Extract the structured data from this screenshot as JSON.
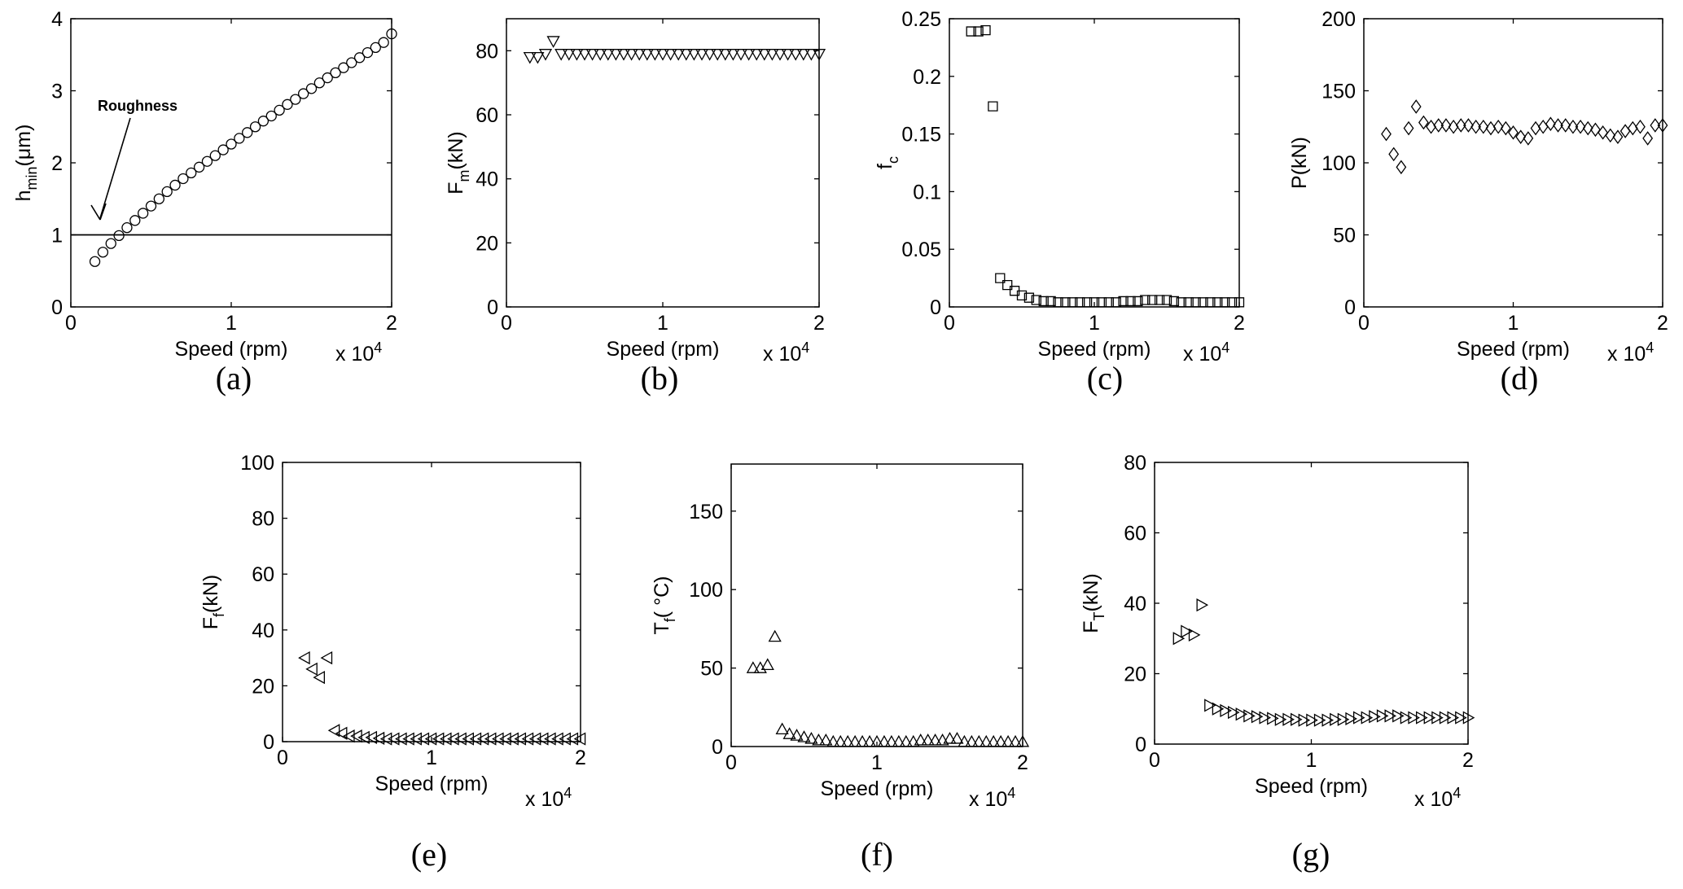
{
  "panels": [
    {
      "id": "a",
      "caption": "(a)",
      "ylabel": {
        "main": "h",
        "sub": "min",
        "rest": "(μm)"
      },
      "xlabel": "Speed (rpm)",
      "multiplier": {
        "base": "x 10",
        "exp": "4"
      },
      "annotation": "Roughness"
    },
    {
      "id": "b",
      "caption": "(b)",
      "ylabel": {
        "main": "F",
        "sub": "m",
        "rest": "(kN)"
      },
      "xlabel": "Speed (rpm)",
      "multiplier": {
        "base": "x 10",
        "exp": "4"
      }
    },
    {
      "id": "c",
      "caption": "(c)",
      "ylabel": {
        "main": "f",
        "sub": "c",
        "rest": ""
      },
      "xlabel": "Speed (rpm)",
      "multiplier": {
        "base": "x 10",
        "exp": "4"
      }
    },
    {
      "id": "d",
      "caption": "(d)",
      "ylabel": {
        "main": "P(kN)",
        "sub": "",
        "rest": ""
      },
      "xlabel": "Speed (rpm)",
      "multiplier": {
        "base": "x 10",
        "exp": "4"
      }
    },
    {
      "id": "e",
      "caption": "(e)",
      "ylabel": {
        "main": "F",
        "sub": "f",
        "rest": "(kN)"
      },
      "xlabel": "Speed (rpm)",
      "multiplier": {
        "base": "x 10",
        "exp": "4"
      }
    },
    {
      "id": "f",
      "caption": "(f)",
      "ylabel": {
        "main": "T",
        "sub": "f",
        "rest": "( °C)",
        "sup": "o"
      },
      "xlabel": "Speed (rpm)",
      "multiplier": {
        "base": "x 10",
        "exp": "4"
      }
    },
    {
      "id": "g",
      "caption": "(g)",
      "ylabel": {
        "main": "F",
        "sub": "T",
        "rest": "(kN)"
      },
      "xlabel": "Speed (rpm)",
      "multiplier": {
        "base": "x 10",
        "exp": "4"
      }
    }
  ],
  "chart_data": [
    {
      "panel": "a",
      "type": "scatter",
      "marker": "circle",
      "xlabel": "Speed (rpm)",
      "ylabel": "h_min(μm)",
      "xlim": [
        0,
        20000
      ],
      "ylim": [
        0,
        4
      ],
      "xticks": [
        0,
        10000,
        20000
      ],
      "xtick_labels": [
        "0",
        "1",
        "2"
      ],
      "yticks": [
        0,
        1,
        2,
        3,
        4
      ],
      "ytick_labels": [
        "0",
        "1",
        "2",
        "3",
        "4"
      ],
      "reference_line": {
        "y": 1,
        "label": "Roughness"
      },
      "series": [
        {
          "x": [
            1500,
            2000,
            2500,
            3000,
            3500,
            4000,
            4500,
            5000,
            5500,
            6000,
            6500,
            7000,
            7500,
            8000,
            8500,
            9000,
            9500,
            10000,
            10500,
            11000,
            11500,
            12000,
            12500,
            13000,
            13500,
            14000,
            14500,
            15000,
            15500,
            16000,
            16500,
            17000,
            17500,
            18000,
            18500,
            19000,
            19500,
            20000
          ],
          "y": [
            0.63,
            0.76,
            0.88,
            0.99,
            1.1,
            1.2,
            1.3,
            1.4,
            1.5,
            1.6,
            1.69,
            1.78,
            1.86,
            1.94,
            2.02,
            2.1,
            2.18,
            2.26,
            2.34,
            2.42,
            2.5,
            2.58,
            2.65,
            2.73,
            2.81,
            2.88,
            2.96,
            3.03,
            3.11,
            3.18,
            3.25,
            3.32,
            3.39,
            3.46,
            3.53,
            3.6,
            3.67,
            3.79
          ]
        }
      ]
    },
    {
      "panel": "b",
      "type": "scatter",
      "marker": "triangle-down",
      "xlabel": "Speed (rpm)",
      "ylabel": "F_m(kN)",
      "xlim": [
        0,
        20000
      ],
      "ylim": [
        0,
        90
      ],
      "xticks": [
        0,
        10000,
        20000
      ],
      "xtick_labels": [
        "0",
        "1",
        "2"
      ],
      "yticks": [
        0,
        20,
        40,
        60,
        80
      ],
      "ytick_labels": [
        "0",
        "20",
        "40",
        "60",
        "80"
      ],
      "series": [
        {
          "x": [
            1500,
            2000,
            2500,
            3000,
            3500,
            4000,
            4500,
            5000,
            5500,
            6000,
            6500,
            7000,
            7500,
            8000,
            8500,
            9000,
            9500,
            10000,
            10500,
            11000,
            11500,
            12000,
            12500,
            13000,
            13500,
            14000,
            14500,
            15000,
            15500,
            16000,
            16500,
            17000,
            17500,
            18000,
            18500,
            19000,
            19500,
            20000
          ],
          "y": [
            78,
            78,
            79,
            83,
            79,
            79,
            79,
            79,
            79,
            79,
            79,
            79,
            79,
            79,
            79,
            79,
            79,
            79,
            79,
            79,
            79,
            79,
            79,
            79,
            79,
            79,
            79,
            79,
            79,
            79,
            79,
            79,
            79,
            79,
            79,
            79,
            79,
            79
          ]
        }
      ]
    },
    {
      "panel": "c",
      "type": "scatter",
      "marker": "square",
      "xlabel": "Speed (rpm)",
      "ylabel": "f_c",
      "xlim": [
        0,
        20000
      ],
      "ylim": [
        0,
        0.25
      ],
      "xticks": [
        0,
        10000,
        20000
      ],
      "xtick_labels": [
        "0",
        "1",
        "2"
      ],
      "yticks": [
        0,
        0.05,
        0.1,
        0.15,
        0.2,
        0.25
      ],
      "ytick_labels": [
        "0",
        "0.05",
        "0.1",
        "0.15",
        "0.2",
        "0.25"
      ],
      "series": [
        {
          "x": [
            1500,
            2000,
            2500,
            3000,
            3500,
            4000,
            4500,
            5000,
            5500,
            6000,
            6500,
            7000,
            7500,
            8000,
            8500,
            9000,
            9500,
            10000,
            10500,
            11000,
            11500,
            12000,
            12500,
            13000,
            13500,
            14000,
            14500,
            15000,
            15500,
            16000,
            16500,
            17000,
            17500,
            18000,
            18500,
            19000,
            19500,
            20000
          ],
          "y": [
            0.239,
            0.239,
            0.24,
            0.174,
            0.025,
            0.019,
            0.014,
            0.01,
            0.008,
            0.006,
            0.005,
            0.005,
            0.004,
            0.004,
            0.004,
            0.004,
            0.004,
            0.004,
            0.004,
            0.004,
            0.004,
            0.005,
            0.005,
            0.005,
            0.006,
            0.006,
            0.006,
            0.006,
            0.005,
            0.004,
            0.004,
            0.004,
            0.004,
            0.004,
            0.004,
            0.004,
            0.004,
            0.004
          ]
        }
      ]
    },
    {
      "panel": "d",
      "type": "scatter",
      "marker": "diamond",
      "xlabel": "Speed (rpm)",
      "ylabel": "P(kN)",
      "xlim": [
        0,
        20000
      ],
      "ylim": [
        0,
        200
      ],
      "xticks": [
        0,
        10000,
        20000
      ],
      "xtick_labels": [
        "0",
        "1",
        "2"
      ],
      "yticks": [
        0,
        50,
        100,
        150,
        200
      ],
      "ytick_labels": [
        "0",
        "50",
        "100",
        "150",
        "200"
      ],
      "series": [
        {
          "x": [
            1500,
            2000,
            2500,
            3000,
            3500,
            4000,
            4500,
            5000,
            5500,
            6000,
            6500,
            7000,
            7500,
            8000,
            8500,
            9000,
            9500,
            10000,
            10500,
            11000,
            11500,
            12000,
            12500,
            13000,
            13500,
            14000,
            14500,
            15000,
            15500,
            16000,
            16500,
            17000,
            17500,
            18000,
            18500,
            19000,
            19500,
            20000
          ],
          "y": [
            120,
            106,
            97,
            124,
            139,
            128,
            125,
            126,
            126,
            125,
            126,
            126,
            125,
            125,
            124,
            125,
            124,
            121,
            118,
            117,
            124,
            125,
            127,
            126,
            126,
            125,
            125,
            124,
            123,
            121,
            119,
            118,
            122,
            124,
            125,
            117,
            126,
            126
          ]
        }
      ]
    },
    {
      "panel": "e",
      "type": "scatter",
      "marker": "triangle-left",
      "xlabel": "Speed (rpm)",
      "ylabel": "F_f(kN)",
      "xlim": [
        0,
        20000
      ],
      "ylim": [
        0,
        100
      ],
      "xticks": [
        0,
        10000,
        20000
      ],
      "xtick_labels": [
        "0",
        "1",
        "2"
      ],
      "yticks": [
        0,
        20,
        40,
        60,
        80,
        100
      ],
      "ytick_labels": [
        "0",
        "20",
        "40",
        "60",
        "80",
        "100"
      ],
      "series": [
        {
          "x": [
            1500,
            2000,
            2500,
            3000,
            3500,
            4000,
            4500,
            5000,
            5500,
            6000,
            6500,
            7000,
            7500,
            8000,
            8500,
            9000,
            9500,
            10000,
            10500,
            11000,
            11500,
            12000,
            12500,
            13000,
            13500,
            14000,
            14500,
            15000,
            15500,
            16000,
            16500,
            17000,
            17500,
            18000,
            18500,
            19000,
            19500,
            20000
          ],
          "y": [
            30,
            26,
            23,
            30,
            4,
            3,
            2,
            2,
            1.5,
            1.5,
            1.2,
            1,
            1,
            1,
            1,
            1,
            1,
            1,
            1,
            1,
            1,
            1,
            1,
            1,
            1,
            1,
            1,
            1,
            1,
            1,
            1,
            1,
            1,
            1,
            1,
            1,
            1,
            1
          ]
        }
      ]
    },
    {
      "panel": "f",
      "type": "scatter",
      "marker": "triangle-up",
      "xlabel": "Speed (rpm)",
      "ylabel": "T_f(°C)",
      "xlim": [
        0,
        20000
      ],
      "ylim": [
        0,
        180
      ],
      "xticks": [
        0,
        10000,
        20000
      ],
      "xtick_labels": [
        "0",
        "1",
        "2"
      ],
      "yticks": [
        0,
        50,
        100,
        150
      ],
      "ytick_labels": [
        "0",
        "50",
        "100",
        "150"
      ],
      "series": [
        {
          "x": [
            1500,
            2000,
            2500,
            3000,
            3500,
            4000,
            4500,
            5000,
            5500,
            6000,
            6500,
            7000,
            7500,
            8000,
            8500,
            9000,
            9500,
            10000,
            10500,
            11000,
            11500,
            12000,
            12500,
            13000,
            13500,
            14000,
            14500,
            15000,
            15500,
            16000,
            16500,
            17000,
            17500,
            18000,
            18500,
            19000,
            19500,
            20000
          ],
          "y": [
            50,
            50,
            52,
            70,
            11,
            8,
            7,
            6,
            5,
            4,
            4,
            3,
            3,
            3,
            3,
            3,
            3,
            3,
            3,
            3,
            3,
            3,
            3,
            4,
            4,
            4,
            4,
            5,
            5,
            3,
            3,
            3,
            3,
            3,
            3,
            3,
            3,
            3
          ]
        }
      ]
    },
    {
      "panel": "g",
      "type": "scatter",
      "marker": "triangle-right",
      "xlabel": "Speed (rpm)",
      "ylabel": "F_T(kN)",
      "xlim": [
        0,
        20000
      ],
      "ylim": [
        0,
        80
      ],
      "xticks": [
        0,
        10000,
        20000
      ],
      "xtick_labels": [
        "0",
        "1",
        "2"
      ],
      "yticks": [
        0,
        20,
        40,
        60,
        80
      ],
      "ytick_labels": [
        "0",
        "20",
        "40",
        "60",
        "80"
      ],
      "series": [
        {
          "x": [
            1500,
            2000,
            2500,
            3000,
            3500,
            4000,
            4500,
            5000,
            5500,
            6000,
            6500,
            7000,
            7500,
            8000,
            8500,
            9000,
            9500,
            10000,
            10500,
            11000,
            11500,
            12000,
            12500,
            13000,
            13500,
            14000,
            14500,
            15000,
            15500,
            16000,
            16500,
            17000,
            17500,
            18000,
            18500,
            19000,
            19500,
            20000
          ],
          "y": [
            30,
            32,
            31,
            39.5,
            11,
            10,
            9.5,
            9,
            8.5,
            8,
            7.8,
            7.5,
            7.3,
            7,
            7,
            7,
            6.8,
            6.8,
            6.8,
            6.8,
            7,
            7,
            7.2,
            7.5,
            7.5,
            7.8,
            8,
            8,
            8,
            7.5,
            7.5,
            7.5,
            7.5,
            7.5,
            7.5,
            7.5,
            7.5,
            7.5
          ]
        }
      ]
    }
  ]
}
